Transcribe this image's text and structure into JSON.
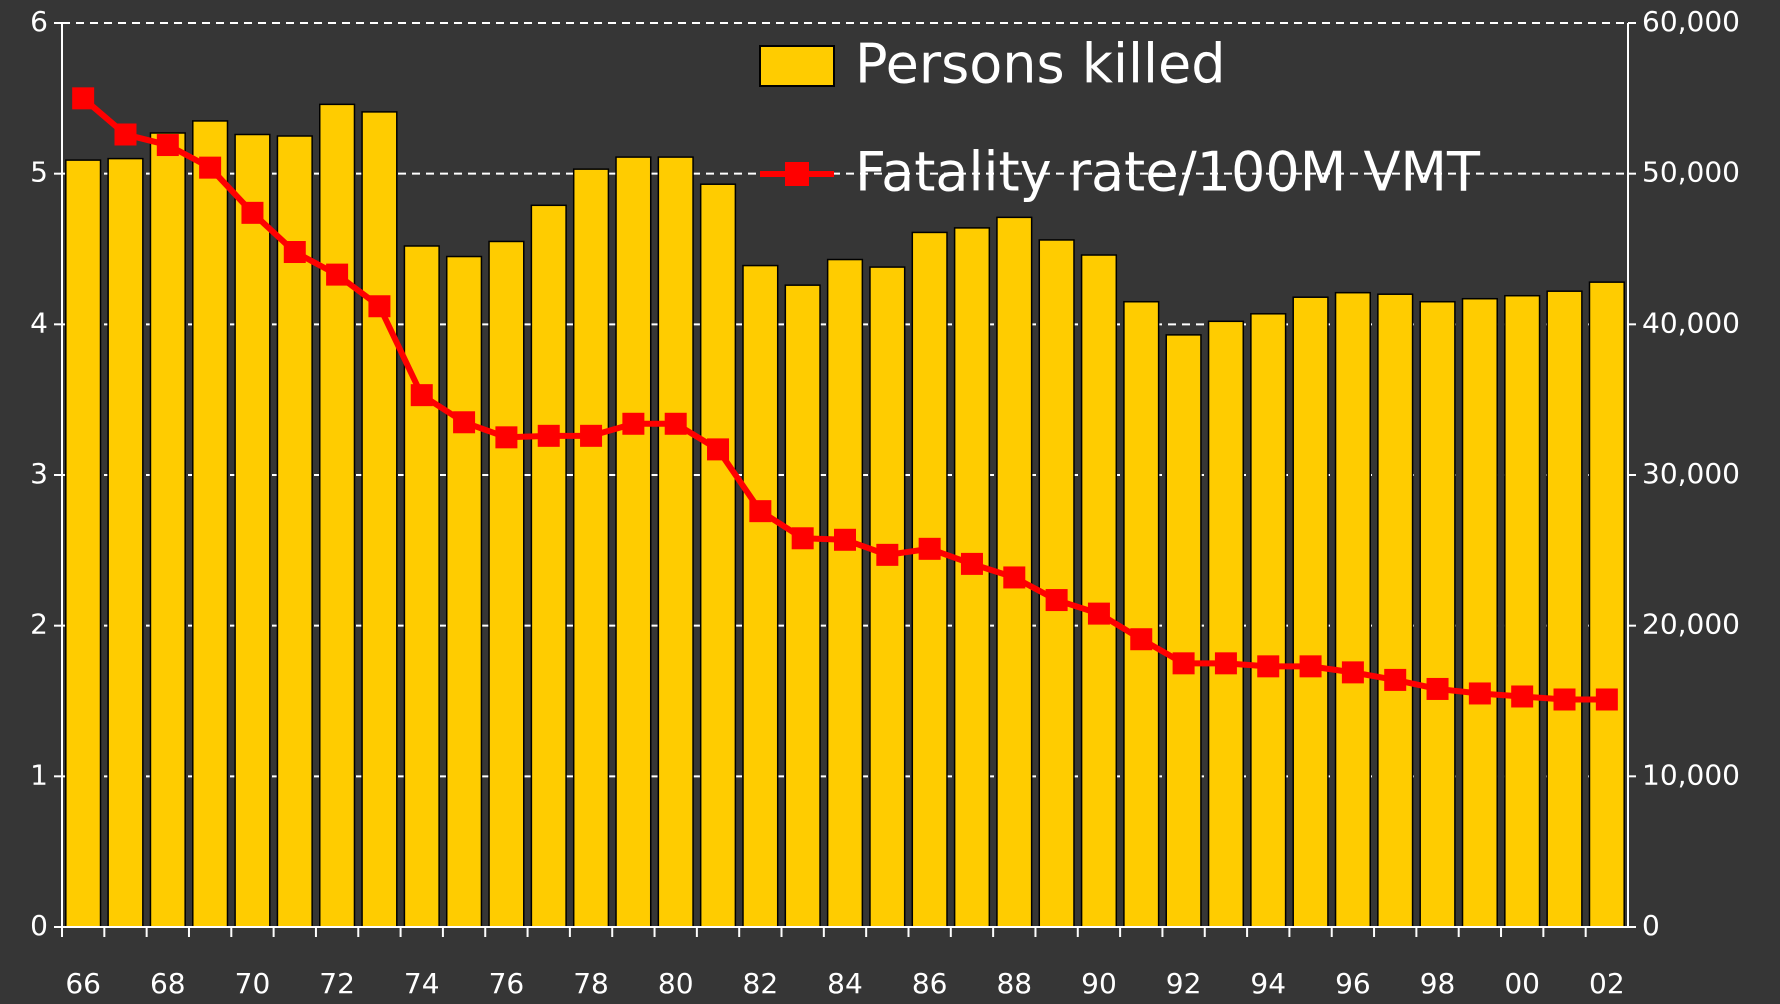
{
  "chart_data": {
    "type": "combo",
    "categories": [
      "66",
      null,
      "68",
      null,
      "70",
      null,
      "72",
      null,
      "74",
      null,
      "76",
      null,
      "78",
      null,
      "80",
      null,
      "82",
      null,
      "84",
      null,
      "86",
      null,
      "88",
      null,
      "90",
      null,
      "92",
      null,
      "94",
      null,
      "96",
      null,
      "98",
      null,
      "00",
      null,
      "02"
    ],
    "series": [
      {
        "name": "Persons killed",
        "type": "bar",
        "axis": "y2",
        "color": "#ffcc00",
        "values": [
          50900,
          51000,
          52700,
          53500,
          52600,
          52500,
          54600,
          54100,
          45200,
          44500,
          45500,
          47900,
          50300,
          51100,
          51100,
          49300,
          43900,
          42600,
          44300,
          43800,
          46100,
          46400,
          47100,
          45600,
          44600,
          41500,
          39300,
          40200,
          40700,
          41800,
          42100,
          42000,
          41500,
          41700,
          41900,
          42200,
          42800
        ]
      },
      {
        "name": "Fatality rate/100M VMT",
        "type": "line",
        "axis": "y",
        "color": "#ff0000",
        "values": [
          5.5,
          5.26,
          5.19,
          5.04,
          4.74,
          4.48,
          4.33,
          4.12,
          3.53,
          3.35,
          3.25,
          3.26,
          3.26,
          3.34,
          3.34,
          3.17,
          2.76,
          2.58,
          2.57,
          2.47,
          2.51,
          2.41,
          2.32,
          2.17,
          2.08,
          1.91,
          1.75,
          1.75,
          1.73,
          1.73,
          1.69,
          1.64,
          1.58,
          1.55,
          1.53,
          1.51,
          1.51
        ]
      }
    ],
    "ylim": [
      0,
      6
    ],
    "yticks": [
      0,
      1,
      2,
      3,
      4,
      5,
      6
    ],
    "y2lim": [
      0,
      60000
    ],
    "y2ticks": [
      0,
      {
        "value": 10000,
        "label": "10,000"
      },
      {
        "value": 20000,
        "label": "20,000"
      },
      {
        "value": 30000,
        "label": "30,000"
      },
      {
        "value": 40000,
        "label": "40,000"
      },
      {
        "value": 50000,
        "label": "50,000"
      },
      {
        "value": 60000,
        "label": "60,000"
      }
    ],
    "grid": true,
    "legend": "upper right"
  }
}
